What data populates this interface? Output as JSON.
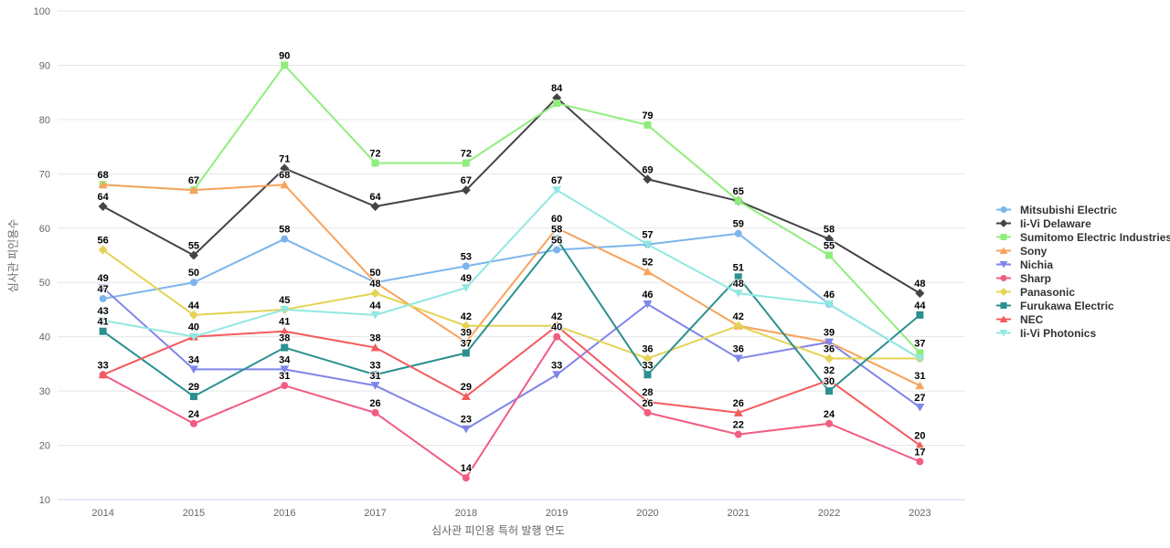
{
  "chart_data": {
    "type": "line",
    "title": "",
    "xlabel": "심사관 피인용 특허 발행 연도",
    "ylabel": "심사관 피인용수",
    "categories": [
      "2014",
      "2015",
      "2016",
      "2017",
      "2018",
      "2019",
      "2020",
      "2021",
      "2022",
      "2023"
    ],
    "ylim": [
      10,
      100
    ],
    "yticks": [
      10,
      20,
      30,
      40,
      50,
      60,
      70,
      80,
      90,
      100
    ],
    "grid": "horizontal",
    "legend_position": "right",
    "background_color": "#ffffff",
    "gridline_color": "#e6e6e6",
    "axis_line_color": "#ccd6eb",
    "tick_label_color": "#666666",
    "axis_title_color": "#666666",
    "legend_text_color": "#333333",
    "series": [
      {
        "name": "Mitsubishi Electric",
        "color": "#7cb5ec",
        "symbol": "circle",
        "values": [
          47,
          50,
          58,
          50,
          53,
          56,
          57,
          59,
          46,
          36
        ]
      },
      {
        "name": "Ii-Vi Delaware",
        "color": "#434348",
        "symbol": "diamond",
        "values": [
          64,
          55,
          71,
          64,
          67,
          84,
          69,
          65,
          58,
          48
        ]
      },
      {
        "name": "Sumitomo Electric Industries",
        "color": "#90ed7d",
        "symbol": "square",
        "values": [
          68,
          67,
          90,
          72,
          72,
          83,
          79,
          65,
          55,
          37
        ]
      },
      {
        "name": "Sony",
        "color": "#f7a35c",
        "symbol": "triangle",
        "values": [
          68,
          67,
          68,
          50,
          39,
          60,
          52,
          42,
          39,
          31
        ]
      },
      {
        "name": "Nichia",
        "color": "#8085e9",
        "symbol": "triangle-down",
        "values": [
          49,
          34,
          34,
          31,
          23,
          33,
          46,
          36,
          39,
          27
        ]
      },
      {
        "name": "Sharp",
        "color": "#f15c80",
        "symbol": "circle",
        "values": [
          33,
          24,
          31,
          26,
          14,
          40,
          26,
          22,
          24,
          17
        ]
      },
      {
        "name": "Panasonic",
        "color": "#e4d354",
        "symbol": "diamond",
        "values": [
          56,
          44,
          45,
          48,
          42,
          42,
          36,
          42,
          36,
          36
        ]
      },
      {
        "name": "Furukawa Electric",
        "color": "#2b908f",
        "symbol": "square",
        "values": [
          41,
          29,
          38,
          33,
          37,
          58,
          33,
          51,
          30,
          44
        ]
      },
      {
        "name": "NEC",
        "color": "#f45b5b",
        "symbol": "triangle",
        "values": [
          33,
          40,
          41,
          38,
          29,
          42,
          28,
          26,
          32,
          20
        ]
      },
      {
        "name": "Ii-Vi Photonics",
        "color": "#91e8e1",
        "symbol": "triangle-down",
        "values": [
          43,
          40,
          45,
          44,
          49,
          67,
          57,
          48,
          46,
          36
        ]
      }
    ]
  }
}
